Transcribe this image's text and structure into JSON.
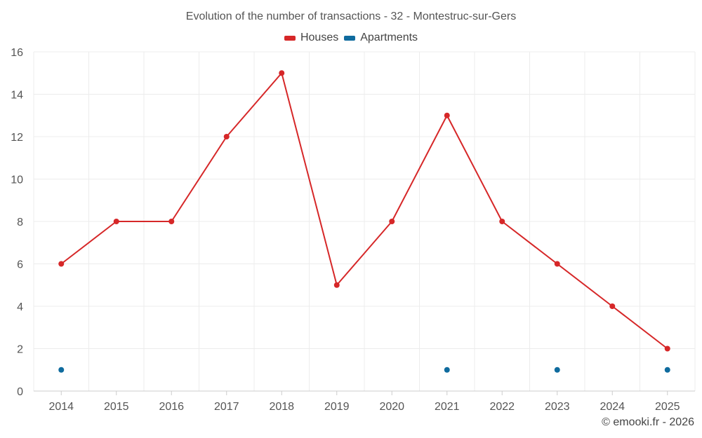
{
  "chart_data": {
    "type": "line",
    "title": "Evolution of the number of transactions - 32 - Montestruc-sur-Gers",
    "categories": [
      "2014",
      "2015",
      "2016",
      "2017",
      "2018",
      "2019",
      "2020",
      "2021",
      "2022",
      "2023",
      "2024",
      "2025"
    ],
    "series": [
      {
        "name": "Houses",
        "color": "#d62728",
        "values": [
          6,
          8,
          8,
          12,
          15,
          5,
          8,
          13,
          8,
          6,
          4,
          2
        ]
      },
      {
        "name": "Apartments",
        "color": "#0f6b9e",
        "values": [
          1,
          null,
          null,
          null,
          null,
          null,
          null,
          1,
          null,
          1,
          null,
          1
        ]
      }
    ],
    "ylim": [
      0,
      16
    ],
    "yticks": [
      0,
      2,
      4,
      6,
      8,
      10,
      12,
      14,
      16
    ],
    "xlabel": "",
    "ylabel": "",
    "grid": true,
    "legend": "top-center"
  },
  "credit": "© emooki.fr - 2026"
}
